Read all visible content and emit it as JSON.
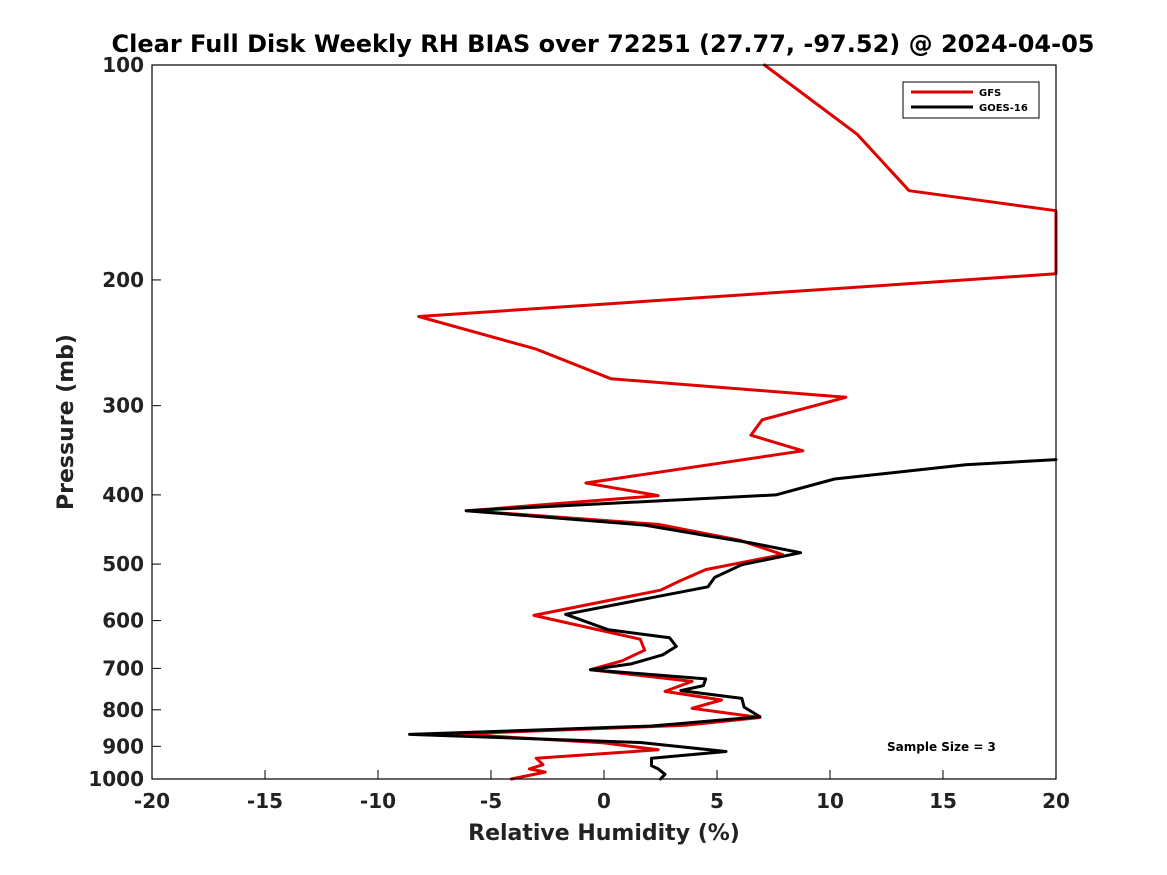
{
  "chart_data": {
    "type": "line",
    "title": "Clear Full Disk Weekly RH BIAS over 72251 (27.77, -97.52) @ 2024-04-05",
    "xlabel": "Relative Humidity (%)",
    "ylabel": "Pressure (mb)",
    "xlim": [
      -20,
      20
    ],
    "ylim": [
      1000,
      100
    ],
    "yscale": "log",
    "grid": false,
    "xticks": [
      -20,
      -15,
      -10,
      -5,
      0,
      5,
      10,
      15,
      20
    ],
    "yticks": [
      100,
      200,
      300,
      400,
      500,
      600,
      700,
      800,
      900,
      1000
    ],
    "legend_position": "top-right",
    "annotation": "Sample Size = 3",
    "series": [
      {
        "name": "GFS",
        "color": "#e00000",
        "points": [
          [
            7.1,
            100
          ],
          [
            11.2,
            125
          ],
          [
            13.5,
            150
          ],
          [
            20,
            160
          ],
          [
            20,
            196
          ],
          [
            16,
            200
          ],
          [
            -8.2,
            225
          ],
          [
            -3,
            250
          ],
          [
            0.3,
            275
          ],
          [
            10.7,
            292
          ],
          [
            7,
            314
          ],
          [
            6.5,
            330
          ],
          [
            8.8,
            347
          ],
          [
            -0.8,
            385
          ],
          [
            2.4,
            401
          ],
          [
            -6,
            421
          ],
          [
            2.4,
            440
          ],
          [
            6,
            463
          ],
          [
            7.9,
            485
          ],
          [
            4.5,
            509
          ],
          [
            3.3,
            529
          ],
          [
            2.5,
            544
          ],
          [
            -3.1,
            590
          ],
          [
            1.6,
            637
          ],
          [
            1.8,
            660
          ],
          [
            0.8,
            683
          ],
          [
            -0.6,
            703
          ],
          [
            3.9,
            730
          ],
          [
            2.7,
            754
          ],
          [
            5.2,
            775
          ],
          [
            3.9,
            796
          ],
          [
            6.9,
            820
          ],
          [
            3.6,
            841
          ],
          [
            -6.5,
            865
          ],
          [
            0,
            890
          ],
          [
            2.4,
            910
          ],
          [
            -3,
            935
          ],
          [
            -2.7,
            955
          ],
          [
            -3.3,
            968
          ],
          [
            -2.6,
            978
          ],
          [
            -4.1,
            1000
          ]
        ]
      },
      {
        "name": "GOES-16",
        "color": "#000000",
        "points": [
          [
            20,
            357
          ],
          [
            16,
            363
          ],
          [
            10.2,
            380
          ],
          [
            7.6,
            400
          ],
          [
            -6.1,
            421
          ],
          [
            1.8,
            441
          ],
          [
            4.5,
            456
          ],
          [
            6.5,
            467
          ],
          [
            8.7,
            482
          ],
          [
            6.1,
            501
          ],
          [
            4.9,
            522
          ],
          [
            4.6,
            538
          ],
          [
            -1.7,
            588
          ],
          [
            0.2,
            618
          ],
          [
            2.9,
            634
          ],
          [
            3.2,
            652
          ],
          [
            2.6,
            670
          ],
          [
            1.2,
            690
          ],
          [
            -0.6,
            703
          ],
          [
            4.5,
            724
          ],
          [
            4.4,
            740
          ],
          [
            3.4,
            752
          ],
          [
            6.1,
            771
          ],
          [
            6.2,
            793
          ],
          [
            6.9,
            818
          ],
          [
            2.1,
            843
          ],
          [
            -8.6,
            866
          ],
          [
            1.6,
            889
          ],
          [
            5.4,
            915
          ],
          [
            2.1,
            935
          ],
          [
            2.1,
            958
          ],
          [
            2.4,
            968
          ],
          [
            2.7,
            985
          ],
          [
            2.5,
            1000
          ]
        ]
      }
    ]
  }
}
